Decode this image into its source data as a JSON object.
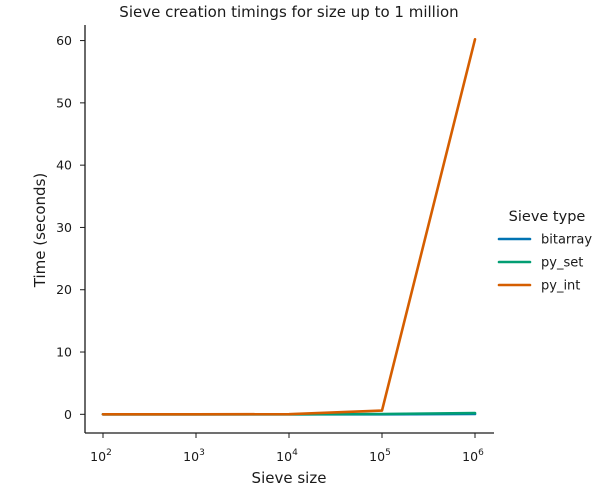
{
  "chart_data": {
    "type": "line",
    "title": "Sieve creation timings for size up to 1 million",
    "xlabel": "Sieve size",
    "ylabel": "Time (seconds)",
    "x_scale": "log",
    "x": [
      100,
      1000,
      10000,
      100000,
      1000000
    ],
    "x_ticks": [
      {
        "base": "10",
        "exp": "2"
      },
      {
        "base": "10",
        "exp": "3"
      },
      {
        "base": "10",
        "exp": "4"
      },
      {
        "base": "10",
        "exp": "5"
      },
      {
        "base": "10",
        "exp": "6"
      }
    ],
    "y_ticks": [
      "0",
      "10",
      "20",
      "30",
      "40",
      "50",
      "60"
    ],
    "ylim": [
      -3,
      62.5
    ],
    "grid": false,
    "legend": {
      "title": "Sieve type",
      "placement": "right"
    },
    "series": [
      {
        "name": "bitarray",
        "color": "#0173b2",
        "values": [
          0.0,
          0.0,
          0.0,
          0.0,
          0.05
        ]
      },
      {
        "name": "py_set",
        "color": "#029e73",
        "values": [
          0.0,
          0.0,
          0.0,
          0.05,
          0.2
        ]
      },
      {
        "name": "py_int",
        "color": "#d55e00",
        "values": [
          0.0,
          0.0,
          0.02,
          0.6,
          60.2
        ]
      }
    ]
  }
}
